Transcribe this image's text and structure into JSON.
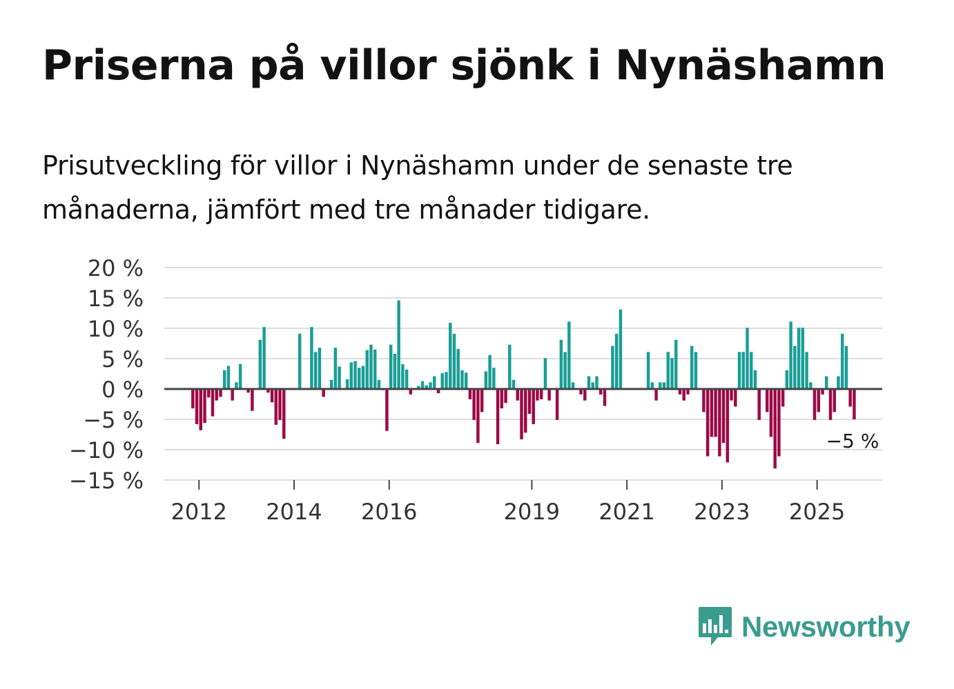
{
  "title": "Priserna på villor sjönk i Nynäshamn",
  "subtitle": "Prisutveckling för villor i Nynäshamn under de senaste tre månaderna, jämfört med tre månader tidigare.",
  "brand": {
    "name": "Newsworthy",
    "icon": "newsworthy-logo-icon",
    "color": "#3a9c8f"
  },
  "colors": {
    "positive": "#1a9e96",
    "negative": "#9c0a46",
    "grid": "#dddddd",
    "zero": "#444444",
    "text": "#333333"
  },
  "chart_data": {
    "type": "bar",
    "title": "Priserna på villor sjönk i Nynäshamn",
    "xlabel": "",
    "ylabel": "",
    "unit": "%",
    "ylim": [
      -15,
      20
    ],
    "yticks": [
      20,
      15,
      10,
      5,
      0,
      -5,
      -10,
      -15
    ],
    "ytick_labels": [
      "20 %",
      "15 %",
      "10 %",
      "5 %",
      "0 %",
      "−5 %",
      "−10 %",
      "−15 %"
    ],
    "xticks": [
      2012,
      2014,
      2016,
      2019,
      2021,
      2023,
      2025
    ],
    "x_start": 2011.9,
    "x_step": 0.0833,
    "x_range": [
      2011.3,
      2026.4
    ],
    "last_value_label": "−5 %",
    "values": [
      -3.2,
      -5.8,
      -6.8,
      -5.6,
      -1.4,
      -4.5,
      -1.9,
      -1.3,
      3.1,
      3.8,
      -1.9,
      1.1,
      4.1,
      0,
      -0.6,
      -3.6,
      0,
      8.1,
      10.2,
      -0.6,
      -2.2,
      -5.9,
      -5.1,
      -8.2,
      0,
      0,
      0,
      9.1,
      0,
      0,
      10.2,
      6.1,
      6.8,
      -1.3,
      0,
      1.5,
      6.8,
      3.7,
      0,
      1.6,
      4.4,
      4.6,
      3.5,
      3.8,
      6.4,
      7.3,
      6.5,
      1.5,
      -0.2,
      -6.9,
      7.3,
      5.8,
      14.6,
      4.1,
      3.2,
      -0.9,
      0,
      0.5,
      1.3,
      0.6,
      1.1,
      2.1,
      -0.7,
      2.6,
      2.8,
      10.9,
      9.1,
      6.6,
      3.1,
      2.7,
      -1.7,
      -5.1,
      -8.9,
      -3.8,
      2.9,
      5.6,
      3.5,
      -9.1,
      -3.2,
      -2.3,
      7.3,
      1.5,
      -1.9,
      -8.3,
      -7.2,
      -4.1,
      -5.8,
      -1.9,
      -1.7,
      5.1,
      -1.9,
      0,
      -5.1,
      8.1,
      6.1,
      11.1,
      1.1,
      0,
      -0.9,
      -1.9,
      2.1,
      1.1,
      2.1,
      -0.9,
      -2.8,
      0,
      7.1,
      9.1,
      13.1,
      0,
      0,
      0,
      0,
      0,
      0,
      6.1,
      1.1,
      -1.9,
      1.1,
      1.1,
      6.1,
      5.1,
      8.1,
      -0.9,
      -1.9,
      -0.9,
      7.1,
      6.1,
      0,
      -3.8,
      -11.1,
      -7.9,
      -7.9,
      -11.1,
      -8.9,
      -12.1,
      -1.9,
      -2.9,
      6.1,
      6.1,
      10.1,
      6.1,
      3.1,
      -5.1,
      0,
      -3.8,
      -7.9,
      -13.1,
      -11.1,
      -2.9,
      3.1,
      11.1,
      7.1,
      10.1,
      10.1,
      6.1,
      1.1,
      -5.1,
      -3.8,
      -0.9,
      2.1,
      -5.1,
      -3.8,
      2.1,
      9.1,
      7.1,
      -2.9,
      -5.0
    ]
  }
}
